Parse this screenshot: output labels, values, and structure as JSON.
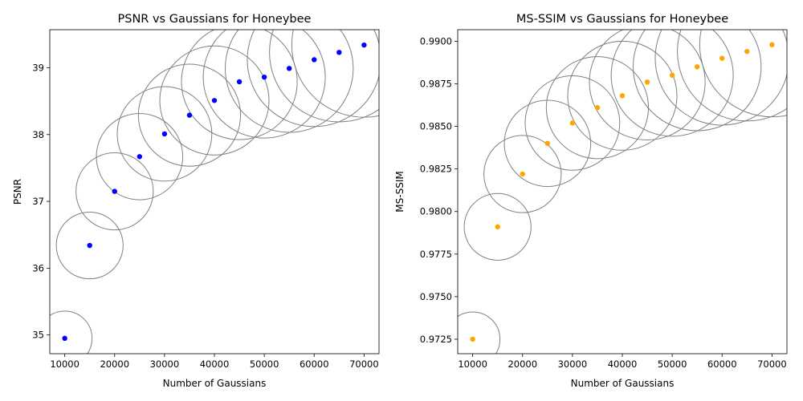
{
  "chart_data": [
    {
      "type": "scatter",
      "title": "PSNR vs Gaussians for Honeybee",
      "xlabel": "Number of Gaussians",
      "ylabel": "PSNR",
      "xlim": [
        7000,
        73000
      ],
      "ylim": [
        34.72,
        39.57
      ],
      "xticks": [
        10000,
        20000,
        30000,
        40000,
        50000,
        60000,
        70000
      ],
      "yticks": [
        35,
        36,
        37,
        38,
        39
      ],
      "ytick_labels": [
        "35",
        "36",
        "37",
        "38",
        "39"
      ],
      "point_color": "#0000ff",
      "bubble_edge_color": "#808080",
      "grid": false,
      "x": [
        10000,
        15000,
        20000,
        25000,
        30000,
        35000,
        40000,
        45000,
        50000,
        55000,
        60000,
        65000,
        70000
      ],
      "y": [
        34.95,
        36.34,
        37.15,
        37.67,
        38.01,
        38.29,
        38.51,
        38.79,
        38.86,
        38.99,
        39.12,
        39.23,
        39.34
      ]
    },
    {
      "type": "scatter",
      "title": "MS-SSIM vs Gaussians for Honeybee",
      "xlabel": "Number of Gaussians",
      "ylabel": "MS-SSIM",
      "xlim": [
        7000,
        73000
      ],
      "ylim": [
        0.97165,
        0.99068
      ],
      "xticks": [
        10000,
        20000,
        30000,
        40000,
        50000,
        60000,
        70000
      ],
      "yticks": [
        0.9725,
        0.975,
        0.9775,
        0.98,
        0.9825,
        0.985,
        0.9875,
        0.99
      ],
      "ytick_labels": [
        "0.9725",
        "0.9750",
        "0.9775",
        "0.9800",
        "0.9825",
        "0.9850",
        "0.9875",
        "0.9900"
      ],
      "point_color": "#ffa500",
      "bubble_edge_color": "#808080",
      "grid": false,
      "x": [
        10000,
        15000,
        20000,
        25000,
        30000,
        35000,
        40000,
        45000,
        50000,
        55000,
        60000,
        65000,
        70000
      ],
      "y": [
        0.9725,
        0.9791,
        0.9822,
        0.984,
        0.9852,
        0.9861,
        0.9868,
        0.9876,
        0.988,
        0.9885,
        0.989,
        0.9894,
        0.9898
      ]
    }
  ]
}
